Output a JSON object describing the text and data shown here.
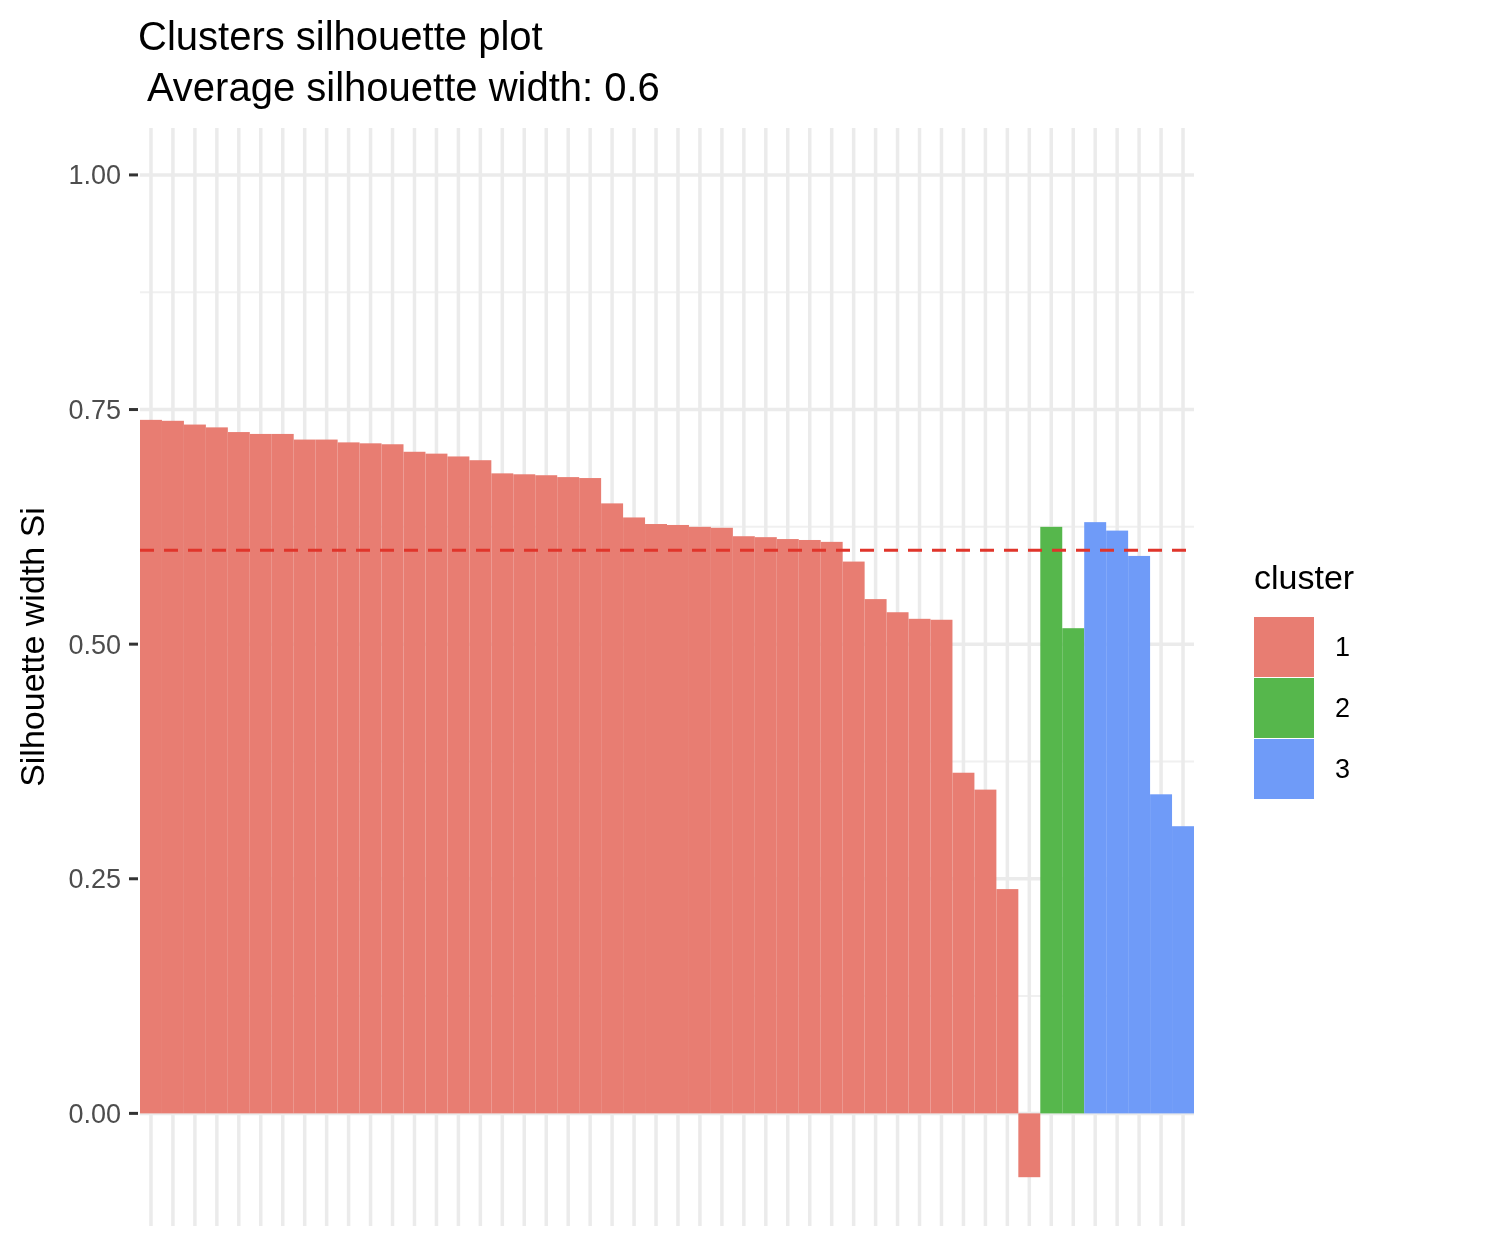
{
  "chart_data": {
    "type": "bar",
    "title": "Clusters silhouette plot",
    "subtitle": " Average silhouette width: 0.6",
    "ylabel": "Silhouette width Si",
    "legend_title": "cluster",
    "categories": [
      null,
      null,
      null,
      null,
      null,
      null,
      null,
      null,
      null,
      null,
      null,
      null,
      null,
      null,
      null,
      null,
      null,
      null,
      null,
      null,
      null,
      null,
      null,
      null,
      null,
      null,
      null,
      null,
      null,
      null,
      null,
      null,
      null,
      null,
      null,
      null,
      null,
      null,
      null,
      null,
      null,
      null,
      null,
      null,
      null,
      null,
      null,
      null
    ],
    "series": [
      {
        "name": "1",
        "color": "#e87d72",
        "values": [
          0.739,
          0.738,
          0.734,
          0.731,
          0.726,
          0.724,
          0.724,
          0.718,
          0.718,
          0.715,
          0.714,
          0.713,
          0.705,
          0.703,
          0.7,
          0.696,
          0.682,
          0.681,
          0.68,
          0.678,
          0.677,
          0.65,
          0.635,
          0.628,
          0.627,
          0.625,
          0.624,
          0.615,
          0.614,
          0.612,
          0.611,
          0.609,
          0.588,
          0.548,
          0.534,
          0.527,
          0.526,
          0.363,
          0.345,
          0.239,
          -0.068,
          null,
          null,
          null,
          null,
          null,
          null,
          null
        ]
      },
      {
        "name": "2",
        "color": "#56b74c",
        "values": [
          null,
          null,
          null,
          null,
          null,
          null,
          null,
          null,
          null,
          null,
          null,
          null,
          null,
          null,
          null,
          null,
          null,
          null,
          null,
          null,
          null,
          null,
          null,
          null,
          null,
          null,
          null,
          null,
          null,
          null,
          null,
          null,
          null,
          null,
          null,
          null,
          null,
          null,
          null,
          null,
          null,
          0.625,
          0.517,
          null,
          null,
          null,
          null,
          null
        ]
      },
      {
        "name": "3",
        "color": "#6f9bf8",
        "values": [
          null,
          null,
          null,
          null,
          null,
          null,
          null,
          null,
          null,
          null,
          null,
          null,
          null,
          null,
          null,
          null,
          null,
          null,
          null,
          null,
          null,
          null,
          null,
          null,
          null,
          null,
          null,
          null,
          null,
          null,
          null,
          null,
          null,
          null,
          null,
          null,
          null,
          null,
          null,
          null,
          null,
          null,
          null,
          0.63,
          0.621,
          0.594,
          0.34,
          0.306
        ]
      }
    ],
    "ylim": [
      -0.12,
      1.05
    ],
    "yticks": [
      {
        "value": 0,
        "label": "0.00"
      },
      {
        "value": 0.25,
        "label": "0.25"
      },
      {
        "value": 0.5,
        "label": "0.50"
      },
      {
        "value": 0.75,
        "label": "0.75"
      },
      {
        "value": 1,
        "label": "1.00"
      }
    ],
    "grid": true,
    "legend": "right",
    "tick_labels": "y",
    "ref_lines": [
      {
        "axis": "y",
        "value": 0.6,
        "color": "#e0352b",
        "line_style": "dashed"
      }
    ]
  }
}
